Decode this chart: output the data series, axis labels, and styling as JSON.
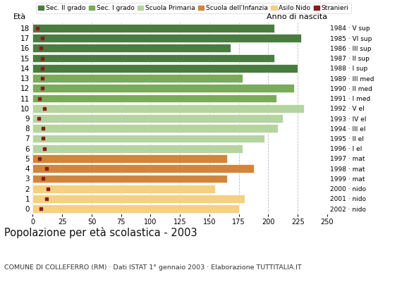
{
  "title": "Popolazione per età scolastica - 2003",
  "subtitle": "COMUNE DI COLLEFERRO (RM) · Dati ISTAT 1° gennaio 2003 · Elaborazione TUTTITALIA.IT",
  "ylabel": "Età",
  "ylabel2": "Anno di nascita",
  "xlim": [
    0,
    250
  ],
  "xticks": [
    0,
    25,
    50,
    75,
    100,
    125,
    150,
    175,
    200,
    225,
    250
  ],
  "ages": [
    18,
    17,
    16,
    15,
    14,
    13,
    12,
    11,
    10,
    9,
    8,
    7,
    6,
    5,
    4,
    3,
    2,
    1,
    0
  ],
  "years": [
    "1984 · V sup",
    "1985 · VI sup",
    "1986 · III sup",
    "1987 · II sup",
    "1988 · I sup",
    "1989 · III med",
    "1990 · II med",
    "1991 · I med",
    "1992 · V el",
    "1993 · IV el",
    "1994 · III el",
    "1995 · II el",
    "1996 · I el",
    "1997 · mat",
    "1998 · mat",
    "1999 · mat",
    "2000 · nido",
    "2001 · nido",
    "2002 · nido"
  ],
  "values": [
    205,
    228,
    168,
    205,
    225,
    178,
    222,
    207,
    230,
    212,
    208,
    197,
    178,
    165,
    188,
    165,
    155,
    180,
    175
  ],
  "stranieri": [
    4,
    8,
    7,
    8,
    8,
    8,
    8,
    6,
    10,
    5,
    9,
    9,
    10,
    6,
    12,
    9,
    13,
    12,
    7
  ],
  "bar_colors": {
    "Sec. II grado": "#4a7c3f",
    "Sec. I grado": "#7aab5a",
    "Scuola Primaria": "#b5d4a0",
    "Scuola dell'Infanzia": "#d2853a",
    "Asilo Nido": "#f5d080"
  },
  "categories": {
    "18": "Sec. II grado",
    "17": "Sec. II grado",
    "16": "Sec. II grado",
    "15": "Sec. II grado",
    "14": "Sec. II grado",
    "13": "Sec. I grado",
    "12": "Sec. I grado",
    "11": "Sec. I grado",
    "10": "Scuola Primaria",
    "9": "Scuola Primaria",
    "8": "Scuola Primaria",
    "7": "Scuola Primaria",
    "6": "Scuola Primaria",
    "5": "Scuola dell'Infanzia",
    "4": "Scuola dell'Infanzia",
    "3": "Scuola dell'Infanzia",
    "2": "Asilo Nido",
    "1": "Asilo Nido",
    "0": "Asilo Nido"
  },
  "legend_labels": [
    "Sec. II grado",
    "Sec. I grado",
    "Scuola Primaria",
    "Scuola dell'Infanzia",
    "Asilo Nido",
    "Stranieri"
  ],
  "stranieri_color": "#8b1a1a",
  "bar_height": 0.82,
  "background_color": "#ffffff",
  "grid_color": "#bbbbbb"
}
